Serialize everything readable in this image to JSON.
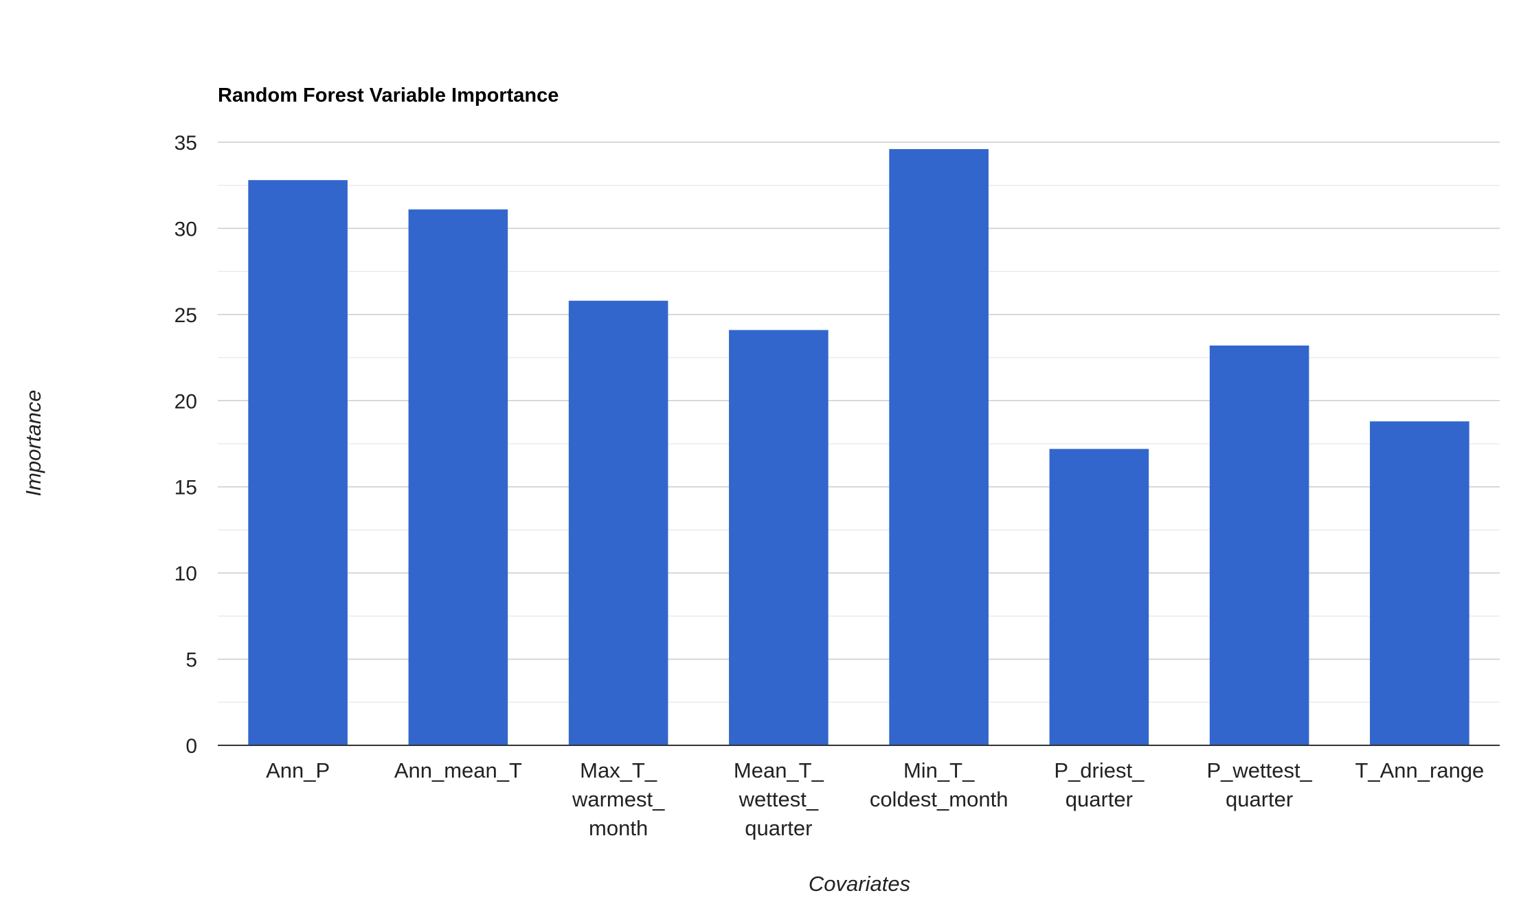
{
  "chart_data": {
    "type": "bar",
    "title": "Random Forest Variable Importance",
    "xlabel": "Covariates",
    "ylabel": "Importance",
    "categories": [
      [
        "Ann_P"
      ],
      [
        "Ann_mean_T"
      ],
      [
        "Max_T_",
        "warmest_",
        "month"
      ],
      [
        "Mean_T_",
        "wettest_",
        "quarter"
      ],
      [
        "Min_T_",
        "coldest_month"
      ],
      [
        "P_driest_",
        "quarter"
      ],
      [
        "P_wettest_",
        "quarter"
      ],
      [
        "T_Ann_range"
      ]
    ],
    "values": [
      32.8,
      31.1,
      25.8,
      24.1,
      34.6,
      17.2,
      23.2,
      18.8
    ],
    "ylim": [
      0,
      35
    ],
    "yticks": [
      "0",
      "5",
      "10",
      "15",
      "20",
      "25",
      "30",
      "35"
    ],
    "grid": true,
    "legend": "none",
    "colors": {
      "bar": "#3366cc",
      "gridline": "#cccccc",
      "minor_gridline": "#ebebeb",
      "axis": "#333333"
    }
  }
}
